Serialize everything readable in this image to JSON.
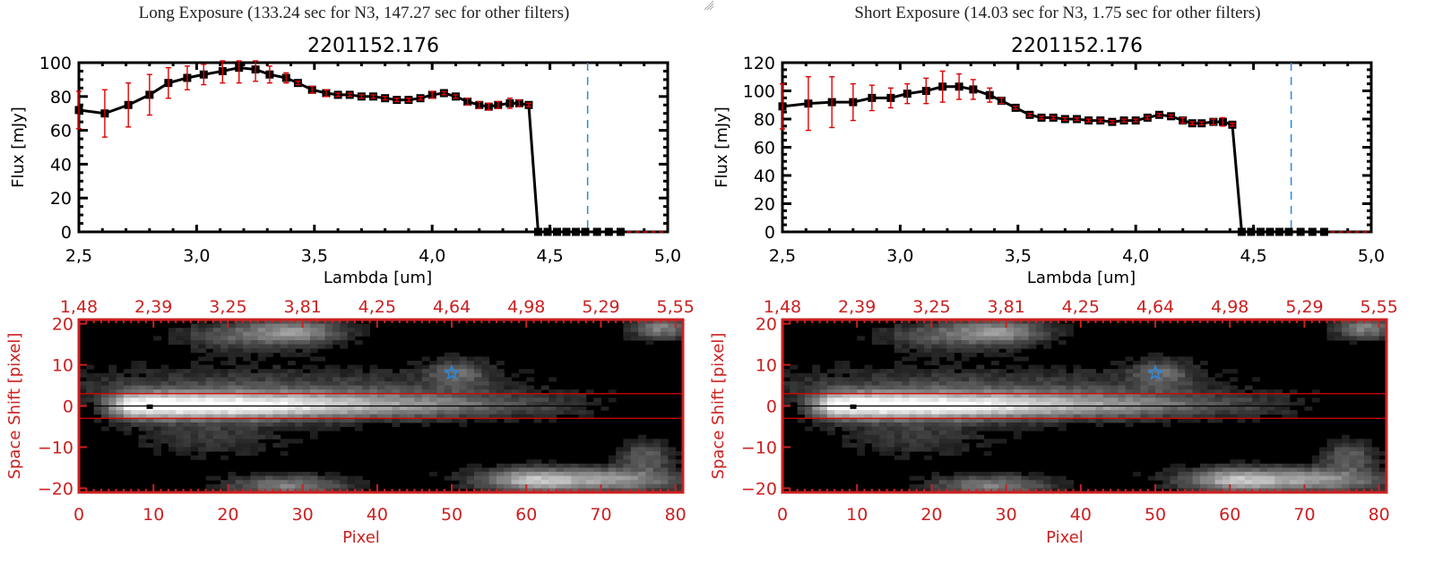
{
  "panels": [
    {
      "id": "long",
      "exposure_title": "Long Exposure (133.24 sec for N3, 147.27 sec for other filters)",
      "chart_data": [
        {
          "type": "line",
          "title": "2201152.176",
          "xlabel": "Lambda [um]",
          "ylabel": "Flux [mJy]",
          "xlim": [
            2.5,
            5.0
          ],
          "ylim": [
            0,
            100
          ],
          "xticks": [
            "2.5",
            "3.0",
            "3.5",
            "4.0",
            "4.5",
            "5.0"
          ],
          "yticks": [
            "0",
            "20",
            "40",
            "60",
            "80",
            "100"
          ],
          "grid": false,
          "x": [
            2.5,
            2.61,
            2.71,
            2.8,
            2.88,
            2.96,
            3.03,
            3.11,
            3.18,
            3.25,
            3.31,
            3.38,
            3.43,
            3.49,
            3.55,
            3.6,
            3.65,
            3.7,
            3.75,
            3.8,
            3.85,
            3.9,
            3.95,
            4.0,
            4.05,
            4.1,
            4.15,
            4.2,
            4.24,
            4.28,
            4.33,
            4.37,
            4.41,
            4.45,
            4.49,
            4.53,
            4.57,
            4.61,
            4.65,
            4.7,
            4.75,
            4.8
          ],
          "y": [
            72,
            70,
            75,
            81,
            88,
            91,
            93,
            95,
            97,
            96,
            93,
            91,
            88,
            84,
            82,
            81,
            81,
            80,
            80,
            79,
            78,
            78,
            79,
            81,
            82,
            80,
            77,
            75,
            74,
            75,
            76,
            76,
            75,
            0,
            0,
            0,
            0,
            0,
            0,
            0,
            0,
            0
          ],
          "yerr": [
            11,
            14,
            13,
            12,
            9,
            7,
            6,
            7,
            9,
            7,
            5,
            3,
            1,
            2,
            2,
            1,
            1,
            1,
            1,
            1,
            1,
            1,
            1,
            2,
            1,
            1,
            2,
            2,
            2,
            2,
            3,
            2,
            1,
            0,
            0,
            0,
            0,
            0,
            0,
            0,
            0,
            0
          ],
          "vline_x": 4.66,
          "zero_line_color": "#e00000",
          "vline_color": "#2a8ae0",
          "marker_color": "#000000",
          "errorbar_color": "#e00000"
        },
        {
          "type": "heatmap",
          "xlabel": "Pixel",
          "ylabel": "Space Shift [pixel]",
          "xlim": [
            0,
            81
          ],
          "ylim": [
            -21,
            21
          ],
          "xticks": [
            "0",
            "10",
            "20",
            "30",
            "40",
            "50",
            "60",
            "70",
            "80"
          ],
          "yticks": [
            "-20",
            "-10",
            "0",
            "10",
            "20"
          ],
          "top_axis_ticks": [
            "1.48",
            "2.39",
            "3.25",
            "3.81",
            "4.25",
            "4.64",
            "4.98",
            "5.29",
            "5.55"
          ],
          "aperture_band": [
            -3,
            3
          ],
          "center_line": 0,
          "peak_marker": {
            "x": 9.5,
            "y": -0.5
          },
          "star_marker": {
            "x": 50,
            "y": 8
          },
          "axis_color": "#cc2020",
          "star_color": "#2a8ae0"
        }
      ]
    },
    {
      "id": "short",
      "exposure_title": "Short Exposure (14.03 sec for N3, 1.75 sec for other filters)",
      "chart_data": [
        {
          "type": "line",
          "title": "2201152.176",
          "xlabel": "Lambda [um]",
          "ylabel": "Flux [mJy]",
          "xlim": [
            2.5,
            5.0
          ],
          "ylim": [
            0,
            120
          ],
          "xticks": [
            "2.5",
            "3.0",
            "3.5",
            "4.0",
            "4.5",
            "5.0"
          ],
          "yticks": [
            "0",
            "20",
            "40",
            "60",
            "80",
            "100",
            "120"
          ],
          "grid": false,
          "x": [
            2.5,
            2.61,
            2.71,
            2.8,
            2.88,
            2.96,
            3.03,
            3.11,
            3.18,
            3.25,
            3.31,
            3.38,
            3.43,
            3.49,
            3.55,
            3.6,
            3.65,
            3.7,
            3.75,
            3.8,
            3.85,
            3.9,
            3.95,
            4.0,
            4.05,
            4.1,
            4.15,
            4.2,
            4.24,
            4.28,
            4.33,
            4.37,
            4.41,
            4.45,
            4.49,
            4.53,
            4.57,
            4.61,
            4.65,
            4.7,
            4.75,
            4.8
          ],
          "y": [
            89,
            91,
            92,
            92,
            95,
            95,
            98,
            100,
            103,
            103,
            101,
            97,
            93,
            88,
            83,
            81,
            81,
            80,
            80,
            79,
            79,
            78,
            79,
            79,
            81,
            83,
            82,
            79,
            77,
            77,
            78,
            78,
            76,
            0,
            0,
            0,
            0,
            0,
            0,
            0,
            0,
            0
          ],
          "yerr": [
            16,
            19,
            18,
            13,
            9,
            7,
            7,
            9,
            11,
            9,
            7,
            5,
            2,
            1,
            1,
            1,
            1,
            1,
            1,
            1,
            1,
            1,
            1,
            1,
            1,
            1,
            1,
            2,
            1,
            1,
            2,
            3,
            1,
            0,
            0,
            0,
            0,
            0,
            0,
            0,
            0,
            0
          ],
          "vline_x": 4.66,
          "zero_line_color": "#e00000",
          "vline_color": "#2a8ae0",
          "marker_color": "#000000",
          "errorbar_color": "#e00000"
        },
        {
          "type": "heatmap",
          "xlabel": "Pixel",
          "ylabel": "Space Shift [pixel]",
          "xlim": [
            0,
            81
          ],
          "ylim": [
            -21,
            21
          ],
          "xticks": [
            "0",
            "10",
            "20",
            "30",
            "40",
            "50",
            "60",
            "70",
            "80"
          ],
          "yticks": [
            "-20",
            "-10",
            "0",
            "10",
            "20"
          ],
          "top_axis_ticks": [
            "1.48",
            "2.39",
            "3.25",
            "3.81",
            "4.25",
            "4.64",
            "4.98",
            "5.29",
            "5.55"
          ],
          "aperture_band": [
            -3,
            3
          ],
          "center_line": 0,
          "peak_marker": {
            "x": 9.5,
            "y": -0.5
          },
          "star_marker": {
            "x": 50,
            "y": 8
          },
          "axis_color": "#cc2020",
          "star_color": "#2a8ae0"
        }
      ]
    }
  ]
}
